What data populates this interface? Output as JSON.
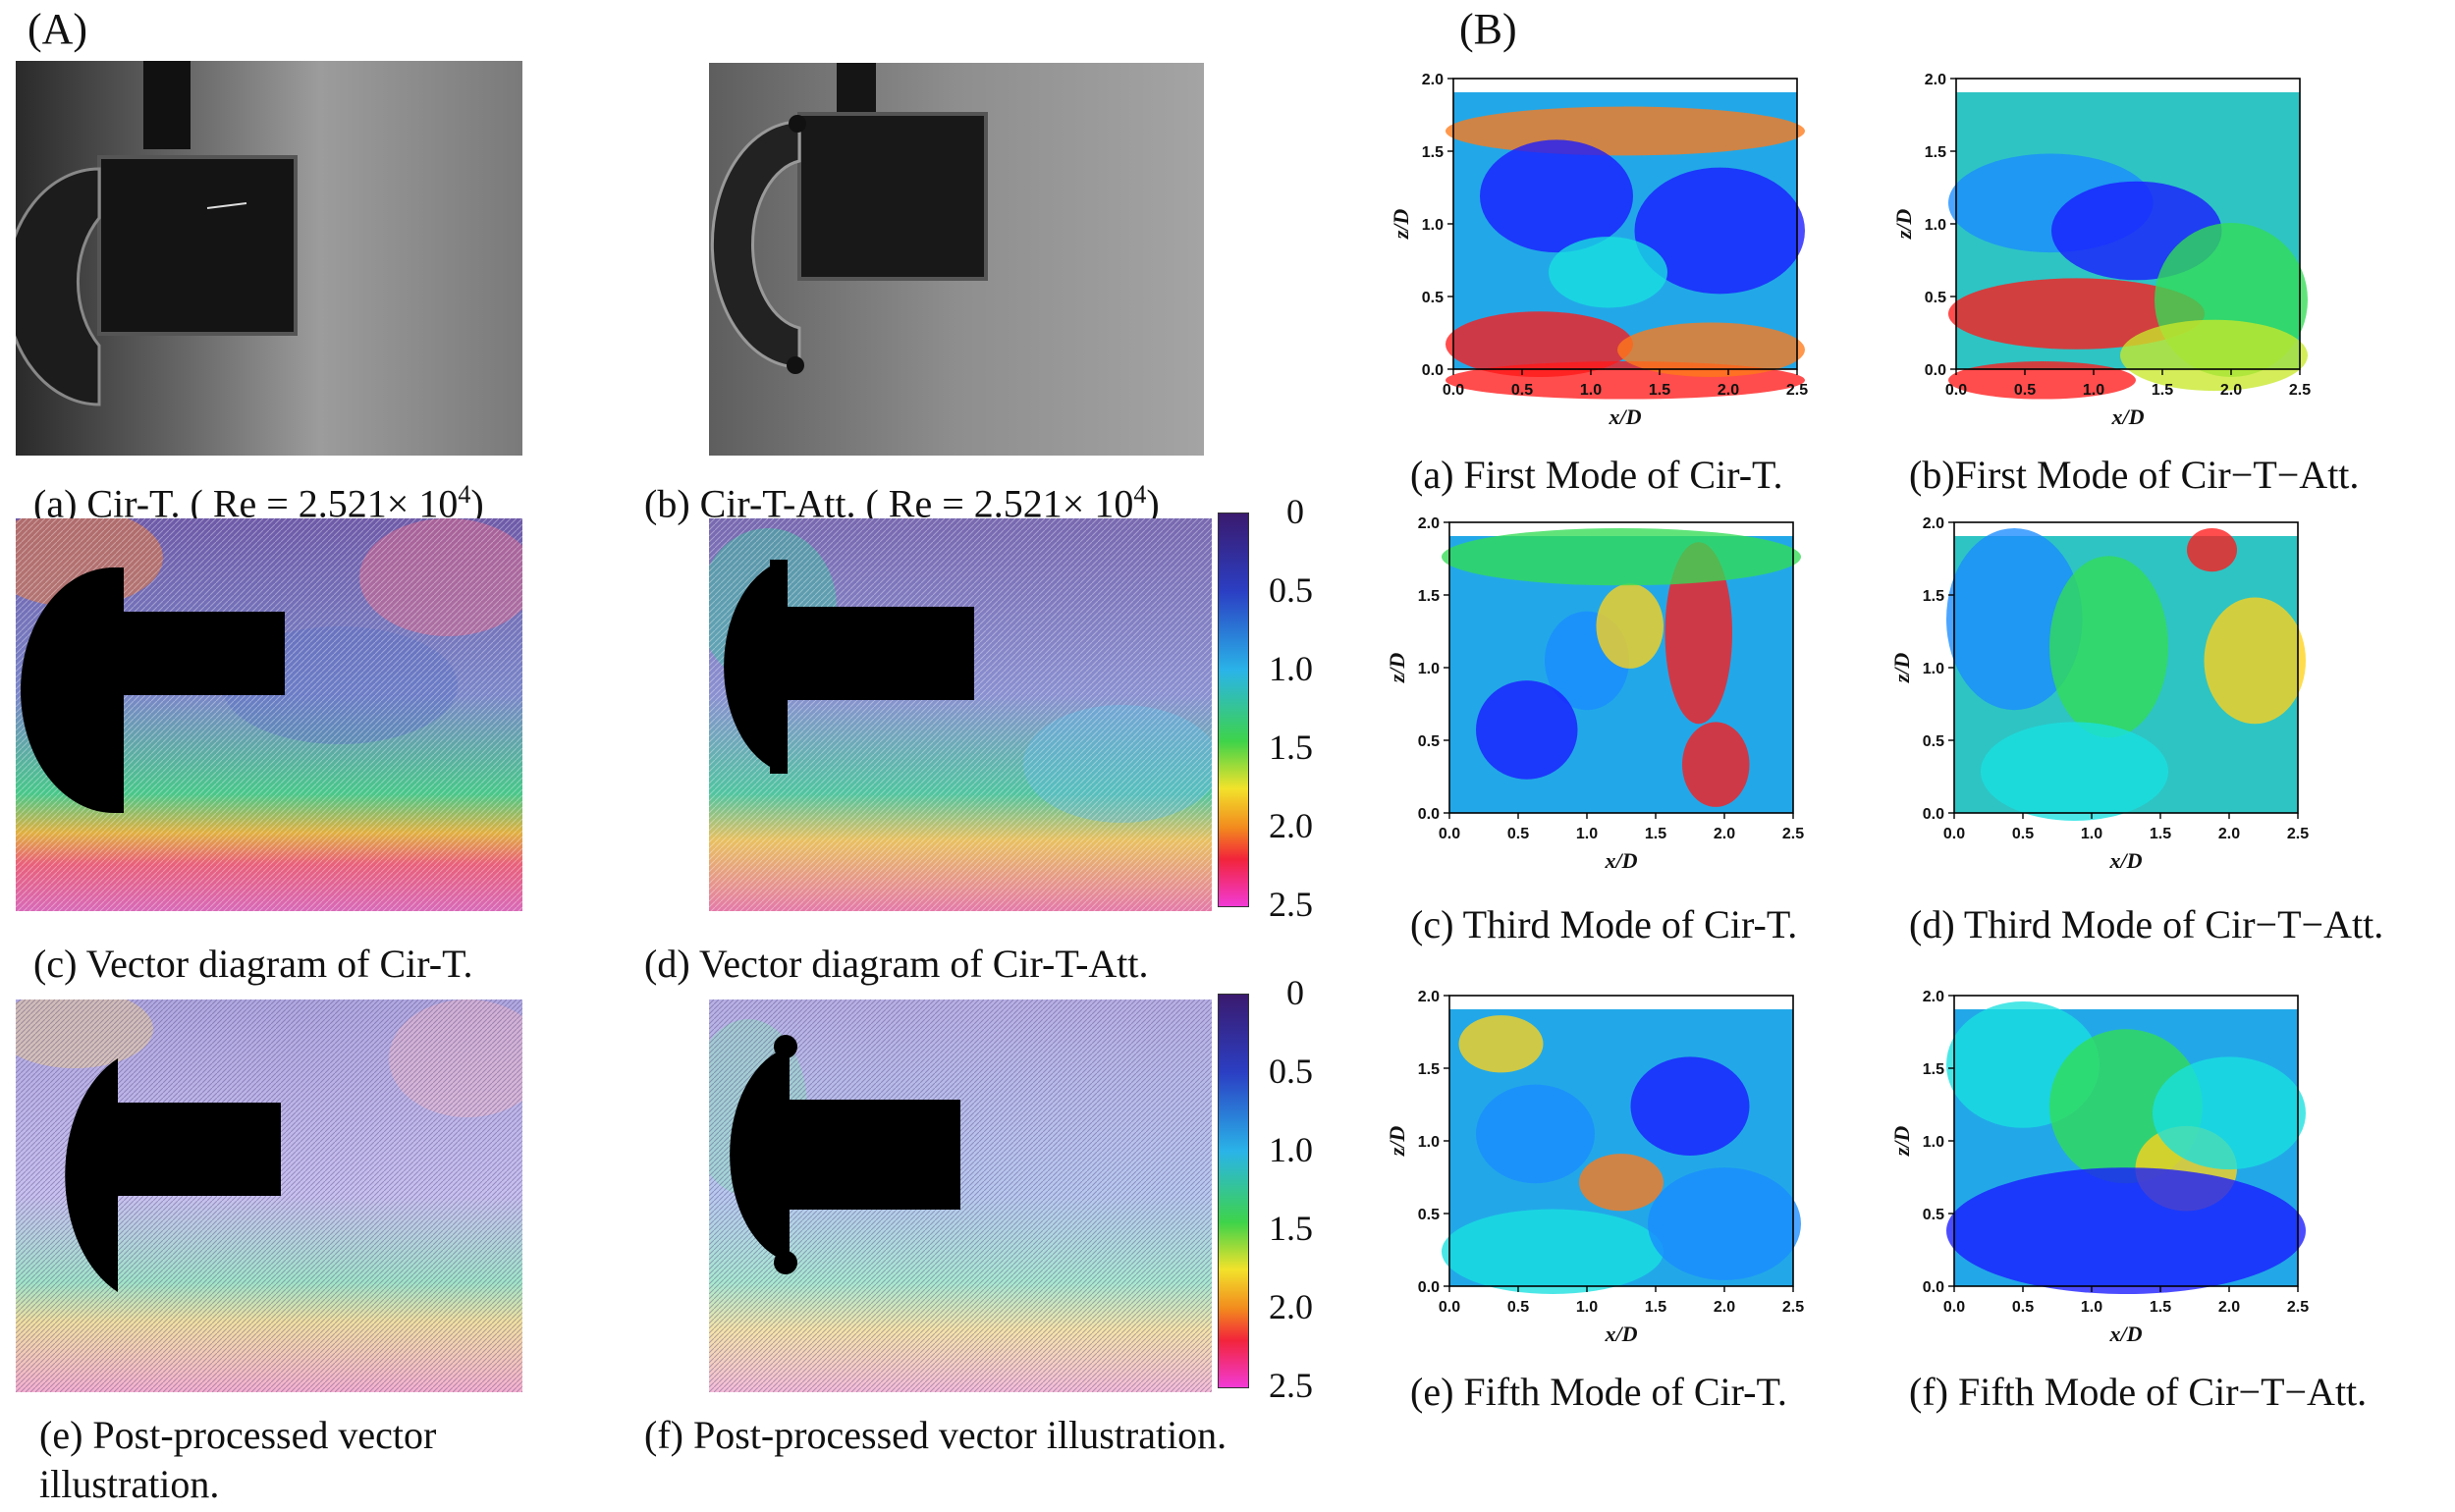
{
  "panel_A": {
    "letter": "(A)",
    "captions": {
      "a": "(a) Cir-T. ( Re = 2.521× 10",
      "a_sup": "4",
      "a_end": ")",
      "b": "(b) Cir-T-Att. ( Re = 2.521× 10",
      "b_sup": "4",
      "b_end": ")",
      "c": "(c) Vector diagram of Cir-T.",
      "d": "(d) Vector diagram of Cir-T-Att.",
      "e_line1": "(e) Post-processed vector",
      "e_line2": "illustration.",
      "f": "(f) Post-processed vector illustration."
    },
    "colorbar_ticks": [
      "0",
      "0.5",
      "1.0",
      "1.5",
      "2.0",
      "2.5"
    ],
    "colorbar_colors": [
      "#3a1a6e",
      "#2b3fc4",
      "#2ab4e8",
      "#3ed34a",
      "#f2e22b",
      "#f28a1e",
      "#f2243a",
      "#f23ad6"
    ]
  },
  "panel_B": {
    "letter": "(B)",
    "captions": {
      "a": "(a) First Mode of Cir-T.",
      "b": "(b)First Mode of Cir−T−Att.",
      "c": "(c) Third Mode of Cir-T.",
      "d": "(d) Third Mode of Cir−T−Att.",
      "e": "(e) Fifth Mode of Cir-T.",
      "f": "(f) Fifth Mode of Cir−T−Att."
    }
  },
  "chart_data": [
    {
      "type": "heatmap",
      "id": "first-mode-cir-t",
      "xlabel": "x/D",
      "ylabel": "z/D",
      "xlim": [
        0,
        2.5
      ],
      "ylim": [
        0,
        2.0
      ],
      "xticks": [
        "0.0",
        "0.5",
        "1.0",
        "1.5",
        "2.0",
        "2.5"
      ],
      "yticks": [
        "0.0",
        "0.5",
        "1.0",
        "1.5",
        "2.0"
      ]
    },
    {
      "type": "heatmap",
      "id": "first-mode-cir-t-att",
      "xlabel": "x/D",
      "ylabel": "z/D",
      "xlim": [
        0,
        2.5
      ],
      "ylim": [
        0,
        2.0
      ],
      "xticks": [
        "0.0",
        "0.5",
        "1.0",
        "1.5",
        "2.0",
        "2.5"
      ],
      "yticks": [
        "0.0",
        "0.5",
        "1.0",
        "1.5",
        "2.0"
      ]
    },
    {
      "type": "heatmap",
      "id": "third-mode-cir-t",
      "xlabel": "x/D",
      "ylabel": "z/D",
      "xlim": [
        0,
        2.5
      ],
      "ylim": [
        0,
        2.0
      ],
      "xticks": [
        "0.0",
        "0.5",
        "1.0",
        "1.5",
        "2.0",
        "2.5"
      ],
      "yticks": [
        "0.0",
        "0.5",
        "1.0",
        "1.5",
        "2.0"
      ]
    },
    {
      "type": "heatmap",
      "id": "third-mode-cir-t-att",
      "xlabel": "x/D",
      "ylabel": "z/D",
      "xlim": [
        0,
        2.5
      ],
      "ylim": [
        0,
        2.0
      ],
      "xticks": [
        "0.0",
        "0.5",
        "1.0",
        "1.5",
        "2.0",
        "2.5"
      ],
      "yticks": [
        "0.0",
        "0.5",
        "1.0",
        "1.5",
        "2.0"
      ]
    },
    {
      "type": "heatmap",
      "id": "fifth-mode-cir-t",
      "xlabel": "x/D",
      "ylabel": "z/D",
      "xlim": [
        0,
        2.5
      ],
      "ylim": [
        0,
        2.0
      ],
      "xticks": [
        "0.0",
        "0.5",
        "1.0",
        "1.5",
        "2.0",
        "2.5"
      ],
      "yticks": [
        "0.0",
        "0.5",
        "1.0",
        "1.5",
        "2.0"
      ]
    },
    {
      "type": "heatmap",
      "id": "fifth-mode-cir-t-att",
      "xlabel": "x/D",
      "ylabel": "z/D",
      "xlim": [
        0,
        2.5
      ],
      "ylim": [
        0,
        2.0
      ],
      "xticks": [
        "0.0",
        "0.5",
        "1.0",
        "1.5",
        "2.0",
        "2.5"
      ],
      "yticks": [
        "0.0",
        "0.5",
        "1.0",
        "1.5",
        "2.0"
      ]
    }
  ]
}
